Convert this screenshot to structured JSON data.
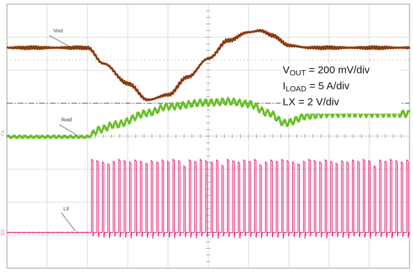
{
  "chart_data": {
    "type": "line",
    "subtype": "oscilloscope-capture",
    "divisions": {
      "horizontal": 10,
      "vertical": 8
    },
    "grid": true,
    "legend_position": "upper-right",
    "annotations": [
      {
        "main": "V",
        "sub": "OUT",
        "rest": " = 200 mV/div"
      },
      {
        "main": "I",
        "sub": "LOAD",
        "rest": " = 5 A/div"
      },
      {
        "main": "LX = 2 V/div",
        "sub": "",
        "rest": ""
      }
    ],
    "series": [
      {
        "name": "Vout",
        "color": "#8b3a10",
        "x_div": [
          0,
          2.0,
          2.4,
          3.0,
          3.5,
          4.0,
          4.5,
          5.0,
          5.5,
          6.0,
          6.3,
          6.6,
          7.0,
          7.5,
          8.0,
          10
        ],
        "y_div": [
          6.68,
          6.68,
          6.2,
          5.6,
          5.1,
          5.25,
          5.8,
          6.35,
          6.9,
          7.15,
          7.2,
          7.05,
          6.75,
          6.68,
          6.68,
          6.68
        ]
      },
      {
        "name": "Iload",
        "color": "#6bbf2a",
        "x_div": [
          0,
          2.0,
          2.3,
          2.7,
          3.5,
          4.0,
          5.0,
          5.5,
          6.0,
          6.5,
          6.9,
          7.5,
          8.0,
          9.0,
          10
        ],
        "y_div": [
          3.98,
          3.98,
          4.2,
          4.35,
          4.7,
          4.9,
          5.02,
          5.05,
          4.98,
          4.7,
          4.4,
          4.62,
          4.68,
          4.68,
          4.68
        ]
      },
      {
        "name": "LX",
        "color": "#e8257a",
        "x_div": [
          0,
          2.05,
          10
        ],
        "low_div": 1.08,
        "high_div": 3.3,
        "switching_start_div": 2.1,
        "switching_period_div": 0.135
      }
    ],
    "channel_markers": [
      {
        "text": "C4",
        "color": "#6bbf2a"
      },
      {
        "text": "C1",
        "color": "#e8257a"
      }
    ]
  }
}
